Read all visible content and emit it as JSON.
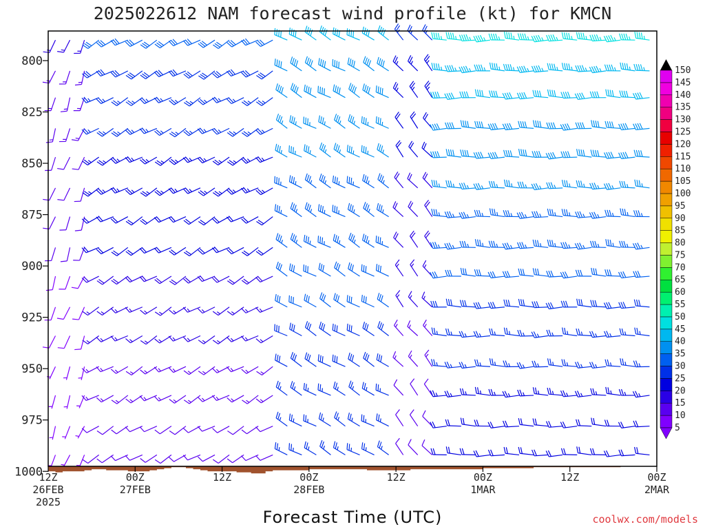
{
  "chart_data": {
    "type": "wind-barb-profile",
    "title": "2025022612 NAM forecast wind profile (kt) for KMCN",
    "xlabel": "Forecast Time (UTC)",
    "credit": "coolwx.com/models",
    "yaxis": {
      "ticks": [
        800,
        825,
        850,
        875,
        900,
        925,
        950,
        975,
        1000
      ],
      "range_hpa": [
        785,
        1010
      ]
    },
    "xaxis": {
      "range_hours": [
        0,
        84
      ],
      "ticks": [
        {
          "hour": 0,
          "line1": "12Z",
          "line2": "26FEB",
          "line3": "2025"
        },
        {
          "hour": 12,
          "line1": "00Z",
          "line2": "27FEB",
          "line3": ""
        },
        {
          "hour": 24,
          "line1": "12Z",
          "line2": "",
          "line3": ""
        },
        {
          "hour": 36,
          "line1": "00Z",
          "line2": "28FEB",
          "line3": ""
        },
        {
          "hour": 48,
          "line1": "12Z",
          "line2": "",
          "line3": ""
        },
        {
          "hour": 60,
          "line1": "00Z",
          "line2": "1MAR",
          "line3": ""
        },
        {
          "hour": 72,
          "line1": "12Z",
          "line2": "",
          "line3": ""
        },
        {
          "hour": 84,
          "line1": "00Z",
          "line2": "2MAR",
          "line3": ""
        }
      ]
    },
    "colorbar": {
      "labels": [
        5,
        10,
        15,
        20,
        25,
        30,
        35,
        40,
        45,
        50,
        55,
        60,
        65,
        70,
        75,
        80,
        85,
        90,
        95,
        100,
        105,
        110,
        115,
        120,
        125,
        130,
        135,
        140,
        145,
        150
      ],
      "colors": [
        "#8000ff",
        "#5a00f0",
        "#2a00e6",
        "#0000e0",
        "#0030e8",
        "#0060f0",
        "#0090f0",
        "#00b8f0",
        "#00e0e0",
        "#00f0b0",
        "#00f070",
        "#00e040",
        "#30f030",
        "#80f030",
        "#c0f030",
        "#f0f000",
        "#f0e000",
        "#f0c000",
        "#f0a000",
        "#f08800",
        "#f06800",
        "#f04800",
        "#f02000",
        "#e80000",
        "#f00040",
        "#f00080",
        "#f000b0",
        "#f000e0",
        "#e000f0",
        "#000000"
      ]
    },
    "surface_pressure_hpa": [
      1000,
      1000.5,
      1000,
      1000,
      1000,
      999.5,
      999,
      999,
      999.5,
      999.5,
      999.5,
      1000,
      1000,
      1000,
      999.5,
      999,
      998.5,
      998,
      998,
      998.5,
      999,
      999.5,
      1000,
      1000,
      1000,
      1000,
      1000.5,
      1000.5,
      1001,
      1001,
      1000,
      999.5,
      999.5,
      999.5,
      999.5,
      999.5,
      999,
      999,
      999,
      999,
      999,
      999,
      999,
      999,
      999.5,
      999.5,
      999.5,
      999.5,
      999.5,
      999.5,
      999,
      999,
      999,
      999,
      999,
      999,
      999,
      999,
      999,
      999,
      998.5,
      998.5,
      998.5,
      998.5,
      998.5,
      998.5,
      998.5,
      998,
      998,
      998,
      998,
      998,
      998,
      998,
      998,
      998,
      998,
      998,
      998,
      997.5,
      997.5,
      997.5,
      997.5,
      997.5,
      997.5
    ],
    "levels_hpa": [
      790,
      805,
      818,
      833,
      847,
      862,
      876,
      891,
      905,
      920,
      934,
      949,
      963,
      978,
      992
    ],
    "wind_phases_hours": [
      {
        "from": 0,
        "to": 7,
        "direction_deg": 200,
        "speed_kt_low": 5,
        "speed_kt_high": 15
      },
      {
        "from": 7,
        "to": 32,
        "direction_deg": 240,
        "speed_kt_low": 10,
        "speed_kt_high": 30
      },
      {
        "from": 32,
        "to": 48,
        "direction_deg": 300,
        "speed_kt_low": 25,
        "speed_kt_high": 40
      },
      {
        "from": 48,
        "to": 54,
        "direction_deg": 320,
        "speed_kt_low": 10,
        "speed_kt_high": 25
      },
      {
        "from": 54,
        "to": 84,
        "direction_deg": 270,
        "speed_kt_low": 20,
        "speed_kt_high": 45
      }
    ]
  }
}
